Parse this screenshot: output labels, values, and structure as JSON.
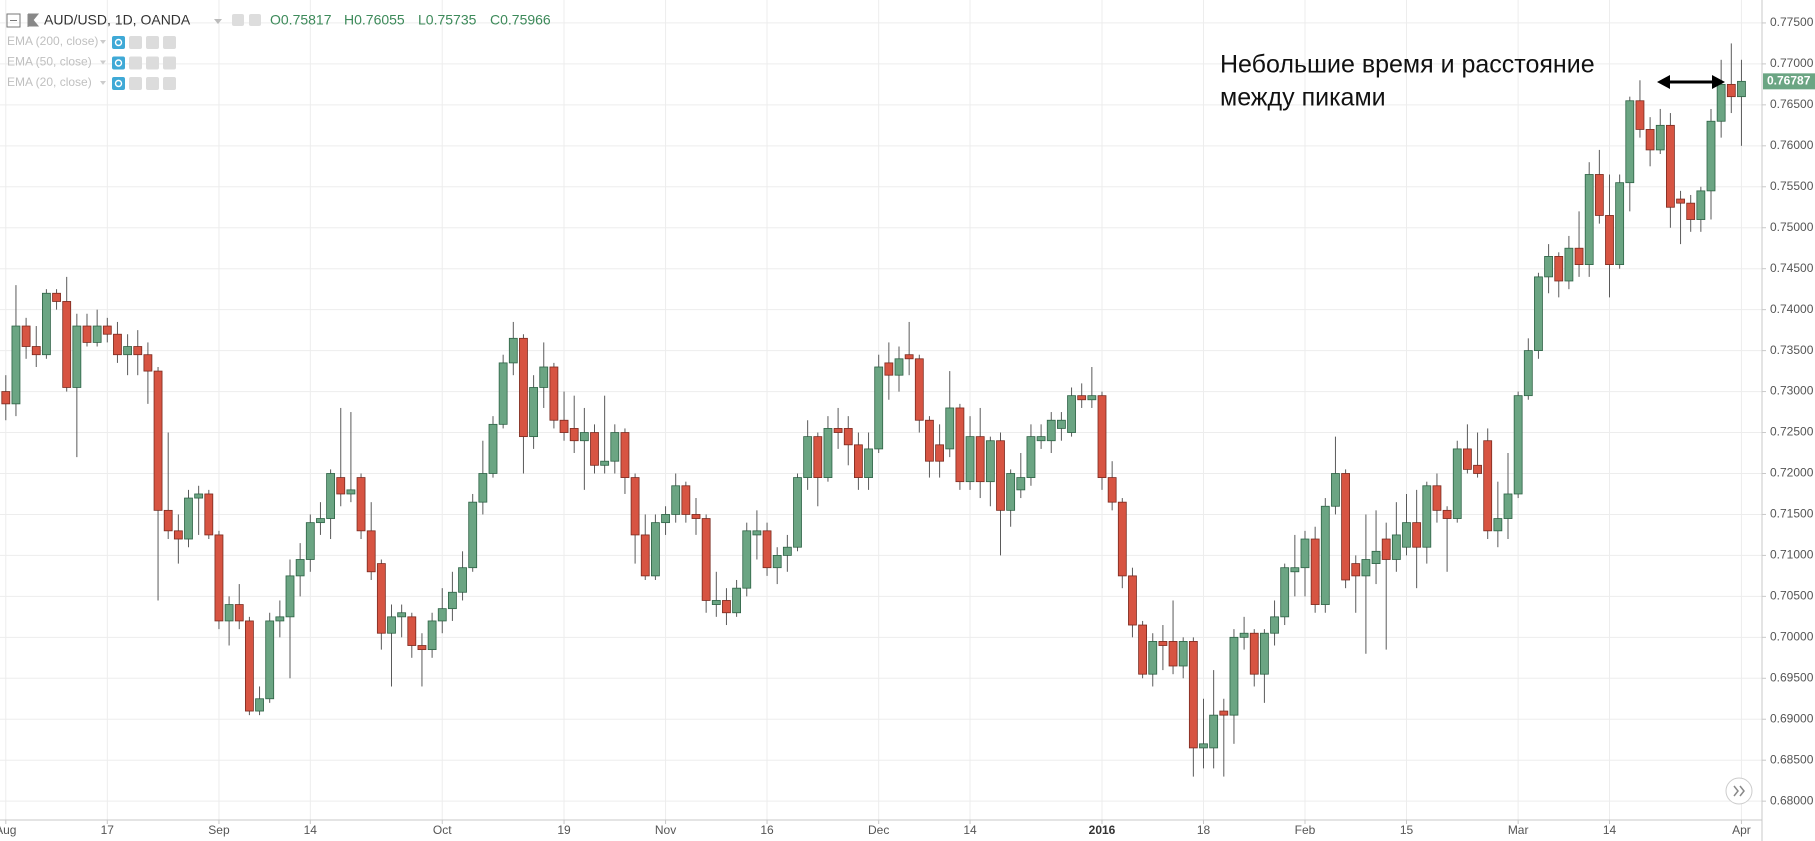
{
  "chart_data": {
    "type": "candlestick",
    "title": "AUD/USD, 1D, OANDA",
    "ohlc_header": [
      "O0.75817",
      "H0.76055",
      "L0.75735",
      "C0.75966"
    ],
    "indicators": [
      "EMA (200, close)",
      "EMA (50, close)",
      "EMA (20, close)"
    ],
    "annotation": [
      "Небольшие время и расстояние",
      "между пиками"
    ],
    "last_price": 0.76787,
    "up_color": "#6ba583",
    "down_color": "#d75442",
    "grid": true,
    "ylim": [
      0.6777,
      0.7778
    ],
    "yticks": [
      {
        "value": 0.68,
        "label": "0.68000"
      },
      {
        "value": 0.685,
        "label": "0.68500"
      },
      {
        "value": 0.69,
        "label": "0.69000"
      },
      {
        "value": 0.695,
        "label": "0.69500"
      },
      {
        "value": 0.7,
        "label": "0.70000"
      },
      {
        "value": 0.705,
        "label": "0.70500"
      },
      {
        "value": 0.71,
        "label": "0.71000"
      },
      {
        "value": 0.715,
        "label": "0.71500"
      },
      {
        "value": 0.72,
        "label": "0.72000"
      },
      {
        "value": 0.725,
        "label": "0.72500"
      },
      {
        "value": 0.73,
        "label": "0.73000"
      },
      {
        "value": 0.735,
        "label": "0.73500"
      },
      {
        "value": 0.74,
        "label": "0.74000"
      },
      {
        "value": 0.745,
        "label": "0.74500"
      },
      {
        "value": 0.75,
        "label": "0.75000"
      },
      {
        "value": 0.755,
        "label": "0.75500"
      },
      {
        "value": 0.76,
        "label": "0.76000"
      },
      {
        "value": 0.765,
        "label": "0.76500"
      },
      {
        "value": 0.77,
        "label": "0.77000"
      },
      {
        "value": 0.775,
        "label": "0.77500"
      }
    ],
    "categories": [
      "Aug",
      null,
      null,
      null,
      null,
      null,
      null,
      null,
      null,
      null,
      "17",
      null,
      null,
      null,
      null,
      null,
      null,
      null,
      null,
      null,
      null,
      "Sep",
      null,
      null,
      null,
      null,
      null,
      null,
      null,
      null,
      "14",
      null,
      null,
      null,
      null,
      null,
      null,
      null,
      null,
      null,
      null,
      null,
      null,
      "Oct",
      null,
      null,
      null,
      null,
      null,
      null,
      null,
      null,
      null,
      null,
      null,
      "19",
      null,
      null,
      null,
      null,
      null,
      null,
      null,
      null,
      null,
      "Nov",
      null,
      null,
      null,
      null,
      null,
      null,
      null,
      null,
      null,
      "16",
      null,
      null,
      null,
      null,
      null,
      null,
      null,
      null,
      null,
      null,
      "Dec",
      null,
      null,
      null,
      null,
      null,
      null,
      null,
      null,
      "14",
      null,
      null,
      null,
      null,
      null,
      null,
      null,
      null,
      null,
      null,
      null,
      null,
      "2016",
      null,
      null,
      null,
      null,
      null,
      null,
      null,
      null,
      null,
      "18",
      null,
      null,
      null,
      null,
      null,
      null,
      null,
      null,
      null,
      "Feb",
      null,
      null,
      null,
      null,
      null,
      null,
      null,
      null,
      null,
      "15",
      null,
      null,
      null,
      null,
      null,
      null,
      null,
      null,
      null,
      null,
      "Mar",
      null,
      null,
      null,
      null,
      null,
      null,
      null,
      null,
      "14",
      null,
      null,
      null,
      null,
      null,
      null,
      null,
      null,
      null,
      null,
      null,
      null,
      "Apr"
    ],
    "ohlc": [
      [
        0.73,
        0.732,
        0.7265,
        0.7285
      ],
      [
        0.7285,
        0.743,
        0.727,
        0.738
      ],
      [
        0.738,
        0.739,
        0.734,
        0.7355
      ],
      [
        0.7355,
        0.738,
        0.733,
        0.7345
      ],
      [
        0.7345,
        0.7425,
        0.734,
        0.742
      ],
      [
        0.742,
        0.7425,
        0.74,
        0.741
      ],
      [
        0.741,
        0.744,
        0.73,
        0.7305
      ],
      [
        0.7305,
        0.7395,
        0.722,
        0.738
      ],
      [
        0.738,
        0.7395,
        0.7355,
        0.736
      ],
      [
        0.736,
        0.74,
        0.7355,
        0.738
      ],
      [
        0.738,
        0.739,
        0.736,
        0.737
      ],
      [
        0.737,
        0.7385,
        0.7335,
        0.7345
      ],
      [
        0.7345,
        0.737,
        0.732,
        0.7355
      ],
      [
        0.7355,
        0.7375,
        0.732,
        0.7345
      ],
      [
        0.7345,
        0.736,
        0.7285,
        0.7325
      ],
      [
        0.7325,
        0.733,
        0.7045,
        0.7155
      ],
      [
        0.7155,
        0.725,
        0.712,
        0.713
      ],
      [
        0.713,
        0.715,
        0.709,
        0.712
      ],
      [
        0.712,
        0.718,
        0.711,
        0.717
      ],
      [
        0.717,
        0.7185,
        0.7125,
        0.7175
      ],
      [
        0.7175,
        0.718,
        0.712,
        0.7125
      ],
      [
        0.7125,
        0.713,
        0.701,
        0.702
      ],
      [
        0.702,
        0.705,
        0.699,
        0.704
      ],
      [
        0.704,
        0.7065,
        0.701,
        0.702
      ],
      [
        0.702,
        0.7025,
        0.6905,
        0.691
      ],
      [
        0.691,
        0.694,
        0.6905,
        0.6925
      ],
      [
        0.6925,
        0.703,
        0.692,
        0.702
      ],
      [
        0.702,
        0.7045,
        0.7,
        0.7025
      ],
      [
        0.7025,
        0.7095,
        0.695,
        0.7075
      ],
      [
        0.7075,
        0.7115,
        0.705,
        0.7095
      ],
      [
        0.7095,
        0.715,
        0.708,
        0.714
      ],
      [
        0.714,
        0.7165,
        0.7125,
        0.7145
      ],
      [
        0.7145,
        0.7205,
        0.712,
        0.72
      ],
      [
        0.7195,
        0.728,
        0.716,
        0.7175
      ],
      [
        0.7175,
        0.7275,
        0.7165,
        0.718
      ],
      [
        0.7195,
        0.72,
        0.712,
        0.713
      ],
      [
        0.713,
        0.7165,
        0.707,
        0.708
      ],
      [
        0.709,
        0.7095,
        0.6985,
        0.7005
      ],
      [
        0.7005,
        0.704,
        0.694,
        0.7025
      ],
      [
        0.7025,
        0.704,
        0.7,
        0.703
      ],
      [
        0.7025,
        0.703,
        0.6975,
        0.699
      ],
      [
        0.699,
        0.7005,
        0.694,
        0.6985
      ],
      [
        0.6985,
        0.703,
        0.6975,
        0.702
      ],
      [
        0.702,
        0.706,
        0.7005,
        0.7035
      ],
      [
        0.7035,
        0.708,
        0.702,
        0.7055
      ],
      [
        0.7055,
        0.7105,
        0.7045,
        0.7085
      ],
      [
        0.7085,
        0.7175,
        0.708,
        0.7165
      ],
      [
        0.7165,
        0.724,
        0.715,
        0.72
      ],
      [
        0.72,
        0.727,
        0.7195,
        0.726
      ],
      [
        0.726,
        0.7345,
        0.7255,
        0.7335
      ],
      [
        0.7335,
        0.7385,
        0.732,
        0.7365
      ],
      [
        0.7365,
        0.737,
        0.72,
        0.7245
      ],
      [
        0.7245,
        0.732,
        0.723,
        0.7305
      ],
      [
        0.7305,
        0.736,
        0.728,
        0.733
      ],
      [
        0.733,
        0.7335,
        0.7255,
        0.7265
      ],
      [
        0.7265,
        0.73,
        0.724,
        0.725
      ],
      [
        0.7255,
        0.7295,
        0.7225,
        0.724
      ],
      [
        0.724,
        0.728,
        0.718,
        0.725
      ],
      [
        0.725,
        0.726,
        0.72,
        0.721
      ],
      [
        0.721,
        0.7295,
        0.72,
        0.7215
      ],
      [
        0.7215,
        0.726,
        0.72,
        0.725
      ],
      [
        0.725,
        0.7255,
        0.7175,
        0.7195
      ],
      [
        0.7195,
        0.72,
        0.709,
        0.7125
      ],
      [
        0.7125,
        0.715,
        0.707,
        0.7075
      ],
      [
        0.7075,
        0.715,
        0.707,
        0.714
      ],
      [
        0.714,
        0.716,
        0.7125,
        0.715
      ],
      [
        0.715,
        0.72,
        0.714,
        0.7185
      ],
      [
        0.7185,
        0.719,
        0.714,
        0.715
      ],
      [
        0.715,
        0.717,
        0.7125,
        0.7145
      ],
      [
        0.7145,
        0.715,
        0.703,
        0.7045
      ],
      [
        0.704,
        0.708,
        0.7025,
        0.7045
      ],
      [
        0.7045,
        0.706,
        0.7015,
        0.703
      ],
      [
        0.703,
        0.707,
        0.7025,
        0.706
      ],
      [
        0.706,
        0.714,
        0.705,
        0.713
      ],
      [
        0.7125,
        0.7155,
        0.7095,
        0.713
      ],
      [
        0.713,
        0.714,
        0.7075,
        0.7085
      ],
      [
        0.7085,
        0.711,
        0.7065,
        0.71
      ],
      [
        0.71,
        0.7125,
        0.708,
        0.711
      ],
      [
        0.711,
        0.72,
        0.7105,
        0.7195
      ],
      [
        0.7195,
        0.7265,
        0.718,
        0.7245
      ],
      [
        0.7245,
        0.725,
        0.716,
        0.7195
      ],
      [
        0.7195,
        0.727,
        0.719,
        0.7255
      ],
      [
        0.7255,
        0.728,
        0.723,
        0.725
      ],
      [
        0.7255,
        0.727,
        0.721,
        0.7235
      ],
      [
        0.7235,
        0.725,
        0.718,
        0.7195
      ],
      [
        0.7195,
        0.725,
        0.718,
        0.723
      ],
      [
        0.723,
        0.7345,
        0.7225,
        0.733
      ],
      [
        0.7335,
        0.736,
        0.729,
        0.732
      ],
      [
        0.732,
        0.7355,
        0.73,
        0.734
      ],
      [
        0.7345,
        0.7385,
        0.732,
        0.734
      ],
      [
        0.734,
        0.7345,
        0.725,
        0.7265
      ],
      [
        0.7265,
        0.727,
        0.7195,
        0.7215
      ],
      [
        0.7235,
        0.726,
        0.7195,
        0.7215
      ],
      [
        0.723,
        0.7325,
        0.722,
        0.728
      ],
      [
        0.728,
        0.7285,
        0.718,
        0.719
      ],
      [
        0.719,
        0.727,
        0.718,
        0.7245
      ],
      [
        0.7245,
        0.728,
        0.717,
        0.719
      ],
      [
        0.719,
        0.7245,
        0.716,
        0.724
      ],
      [
        0.724,
        0.725,
        0.71,
        0.7155
      ],
      [
        0.7155,
        0.7205,
        0.7135,
        0.72
      ],
      [
        0.718,
        0.7225,
        0.717,
        0.7195
      ],
      [
        0.7195,
        0.726,
        0.7185,
        0.7245
      ],
      [
        0.724,
        0.726,
        0.723,
        0.7245
      ],
      [
        0.724,
        0.7275,
        0.7225,
        0.7265
      ],
      [
        0.7255,
        0.7275,
        0.724,
        0.7265
      ],
      [
        0.725,
        0.7305,
        0.7245,
        0.7295
      ],
      [
        0.7295,
        0.731,
        0.728,
        0.729
      ],
      [
        0.729,
        0.733,
        0.728,
        0.7295
      ],
      [
        0.7295,
        0.73,
        0.718,
        0.7195
      ],
      [
        0.7195,
        0.7215,
        0.7155,
        0.7165
      ],
      [
        0.7165,
        0.717,
        0.706,
        0.7075
      ],
      [
        0.7075,
        0.7085,
        0.7,
        0.7015
      ],
      [
        0.7015,
        0.702,
        0.695,
        0.6955
      ],
      [
        0.6955,
        0.7005,
        0.694,
        0.6995
      ],
      [
        0.6995,
        0.7015,
        0.696,
        0.699
      ],
      [
        0.6995,
        0.7045,
        0.6955,
        0.6965
      ],
      [
        0.6965,
        0.7,
        0.695,
        0.6995
      ],
      [
        0.6995,
        0.7,
        0.683,
        0.6865
      ],
      [
        0.6865,
        0.6925,
        0.684,
        0.687
      ],
      [
        0.6865,
        0.696,
        0.684,
        0.6905
      ],
      [
        0.691,
        0.6925,
        0.683,
        0.6905
      ],
      [
        0.6905,
        0.701,
        0.687,
        0.7
      ],
      [
        0.7,
        0.7025,
        0.6985,
        0.7005
      ],
      [
        0.7005,
        0.701,
        0.694,
        0.6955
      ],
      [
        0.6955,
        0.701,
        0.692,
        0.7005
      ],
      [
        0.7005,
        0.7045,
        0.699,
        0.7025
      ],
      [
        0.7025,
        0.709,
        0.7015,
        0.7085
      ],
      [
        0.708,
        0.7125,
        0.705,
        0.7085
      ],
      [
        0.7085,
        0.713,
        0.705,
        0.712
      ],
      [
        0.712,
        0.7135,
        0.703,
        0.704
      ],
      [
        0.704,
        0.717,
        0.703,
        0.716
      ],
      [
        0.716,
        0.7245,
        0.715,
        0.72
      ],
      [
        0.72,
        0.7205,
        0.706,
        0.707
      ],
      [
        0.709,
        0.71,
        0.703,
        0.7075
      ],
      [
        0.7075,
        0.715,
        0.698,
        0.7095
      ],
      [
        0.709,
        0.7155,
        0.7065,
        0.7105
      ],
      [
        0.712,
        0.714,
        0.6985,
        0.7095
      ],
      [
        0.7095,
        0.7165,
        0.708,
        0.7125
      ],
      [
        0.711,
        0.7175,
        0.71,
        0.714
      ],
      [
        0.714,
        0.718,
        0.706,
        0.711
      ],
      [
        0.711,
        0.719,
        0.709,
        0.7185
      ],
      [
        0.7185,
        0.72,
        0.714,
        0.7155
      ],
      [
        0.7155,
        0.716,
        0.708,
        0.7145
      ],
      [
        0.7145,
        0.724,
        0.714,
        0.723
      ],
      [
        0.723,
        0.726,
        0.72,
        0.7205
      ],
      [
        0.721,
        0.725,
        0.7195,
        0.72
      ],
      [
        0.724,
        0.7255,
        0.712,
        0.713
      ],
      [
        0.713,
        0.719,
        0.711,
        0.7145
      ],
      [
        0.7145,
        0.7225,
        0.712,
        0.7175
      ],
      [
        0.7175,
        0.73,
        0.717,
        0.7295
      ],
      [
        0.7295,
        0.7365,
        0.729,
        0.735
      ],
      [
        0.735,
        0.7445,
        0.734,
        0.744
      ],
      [
        0.744,
        0.748,
        0.742,
        0.7465
      ],
      [
        0.7465,
        0.747,
        0.7415,
        0.7435
      ],
      [
        0.7435,
        0.749,
        0.7425,
        0.7475
      ],
      [
        0.7475,
        0.752,
        0.744,
        0.7455
      ],
      [
        0.7455,
        0.758,
        0.744,
        0.7565
      ],
      [
        0.7565,
        0.7595,
        0.7505,
        0.7515
      ],
      [
        0.7515,
        0.7565,
        0.7415,
        0.7455
      ],
      [
        0.7455,
        0.7565,
        0.745,
        0.7555
      ],
      [
        0.7555,
        0.766,
        0.752,
        0.7655
      ],
      [
        0.7655,
        0.768,
        0.761,
        0.762
      ],
      [
        0.762,
        0.7635,
        0.7575,
        0.7595
      ],
      [
        0.7595,
        0.7645,
        0.759,
        0.7625
      ],
      [
        0.7625,
        0.764,
        0.75,
        0.7525
      ],
      [
        0.7535,
        0.7545,
        0.748,
        0.753
      ],
      [
        0.753,
        0.754,
        0.7495,
        0.751
      ],
      [
        0.751,
        0.755,
        0.7495,
        0.7545
      ],
      [
        0.7545,
        0.7645,
        0.751,
        0.763
      ],
      [
        0.763,
        0.7705,
        0.761,
        0.7675
      ],
      [
        0.7675,
        0.7725,
        0.764,
        0.766
      ],
      [
        0.766,
        0.7705,
        0.76,
        0.76787
      ]
    ]
  }
}
